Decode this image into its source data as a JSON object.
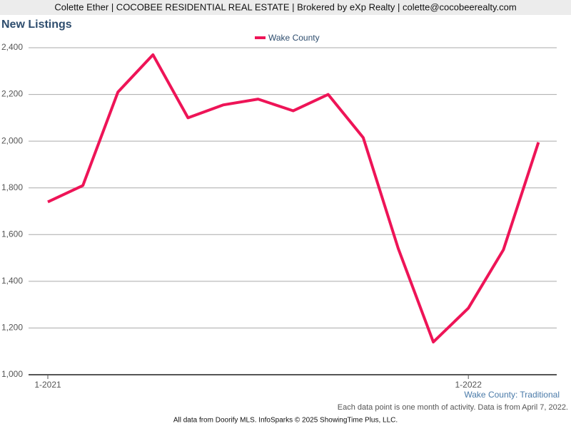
{
  "header": "Colette Ether | COCOBEE RESIDENTIAL REAL ESTATE | Brokered by eXp Realty | colette@cocobeerealty.com",
  "chart_data": {
    "type": "line",
    "title": "New Listings",
    "categories": [
      "1-2021",
      null,
      null,
      null,
      null,
      null,
      null,
      null,
      null,
      null,
      null,
      null,
      "1-2022",
      null,
      null
    ],
    "series": [
      {
        "name": "Wake County",
        "color": "#ee1457",
        "values": [
          1740,
          1810,
          2210,
          2370,
          2100,
          2155,
          2180,
          2130,
          2200,
          2015,
          1540,
          1140,
          1285,
          1535,
          1995
        ]
      }
    ],
    "ylim": [
      1000,
      2400
    ],
    "yticks": [
      {
        "value": 1000,
        "label": "1,000"
      },
      {
        "value": 1200,
        "label": "1,200"
      },
      {
        "value": 1400,
        "label": "1,400"
      },
      {
        "value": 1600,
        "label": "1,600"
      },
      {
        "value": 1800,
        "label": "1,800"
      },
      {
        "value": 2000,
        "label": "2,000"
      },
      {
        "value": 2200,
        "label": "2,200"
      },
      {
        "value": 2400,
        "label": "2,400"
      }
    ],
    "grid": true,
    "legend": "top",
    "subtitle": "Wake County: Traditional",
    "note": "Each data point is one month of activity. Data is from April 7, 2022.",
    "source": "All data from Doorify MLS. InfoSparks © 2025 ShowingTime Plus, LLC."
  }
}
